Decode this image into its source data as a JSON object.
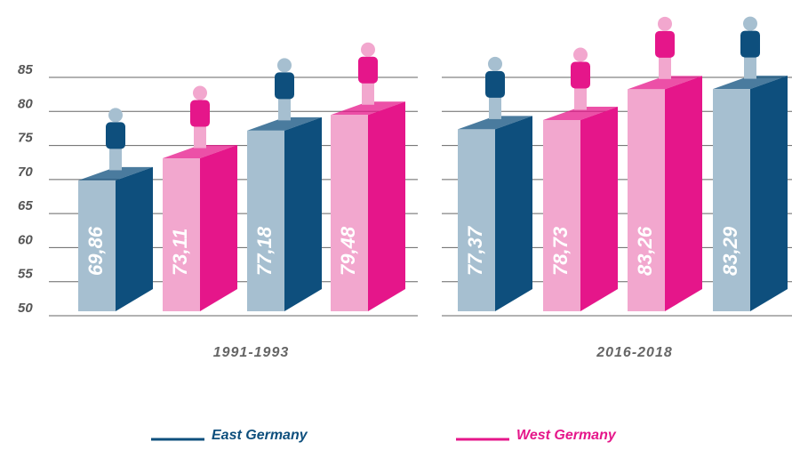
{
  "chart_data": {
    "type": "bar3d",
    "categories": [
      "1991-1993",
      "2016-2018"
    ],
    "series": [
      {
        "name": "East Germany",
        "color": "#0e4f7d",
        "light_color": "#a6bfd0",
        "values": [
          [
            69.86,
            77.18
          ],
          [
            77.37,
            83.29
          ]
        ],
        "value_labels": [
          [
            "69,86",
            "77,18"
          ],
          [
            "77,37",
            "83,29"
          ]
        ]
      },
      {
        "name": "West Germany",
        "color": "#e5168a",
        "light_color": "#f2a7ce",
        "values": [
          [
            73.11,
            79.48
          ],
          [
            78.73,
            83.26
          ]
        ],
        "value_labels": [
          [
            "73,11",
            "79,48"
          ],
          [
            "78,73",
            "83,26"
          ]
        ]
      }
    ],
    "ylim": [
      50,
      85
    ],
    "yticks": [
      50,
      55,
      60,
      65,
      70,
      75,
      80,
      85
    ],
    "grid": true
  }
}
